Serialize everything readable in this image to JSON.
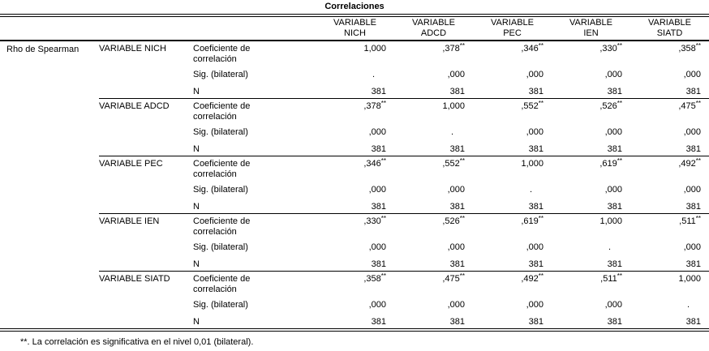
{
  "title": "Correlaciones",
  "corner_label": "Rho de Spearman",
  "columns": [
    {
      "line1": "VARIABLE",
      "line2": "NICH"
    },
    {
      "line1": "VARIABLE",
      "line2": "ADCD"
    },
    {
      "line1": "VARIABLE",
      "line2": "PEC"
    },
    {
      "line1": "VARIABLE",
      "line2": "IEN"
    },
    {
      "line1": "VARIABLE",
      "line2": "SIATD"
    }
  ],
  "labels": {
    "coef": "Coeficiente de correlación",
    "sig": "Sig. (bilateral)",
    "n": "N"
  },
  "blocks": [
    {
      "variable": "VARIABLE NICH",
      "coef": [
        "1,000",
        ",378",
        ",346",
        ",330",
        ",358"
      ],
      "coef_sup": [
        "",
        "**",
        "**",
        "**",
        "**"
      ],
      "sig": [
        ".",
        ",000",
        ",000",
        ",000",
        ",000"
      ],
      "n": [
        "381",
        "381",
        "381",
        "381",
        "381"
      ]
    },
    {
      "variable": "VARIABLE ADCD",
      "coef": [
        ",378",
        "1,000",
        ",552",
        ",526",
        ",475"
      ],
      "coef_sup": [
        "**",
        "",
        "**",
        "**",
        "**"
      ],
      "sig": [
        ",000",
        ".",
        ",000",
        ",000",
        ",000"
      ],
      "n": [
        "381",
        "381",
        "381",
        "381",
        "381"
      ]
    },
    {
      "variable": "VARIABLE PEC",
      "coef": [
        ",346",
        ",552",
        "1,000",
        ",619",
        ",492"
      ],
      "coef_sup": [
        "**",
        "**",
        "",
        "**",
        "**"
      ],
      "sig": [
        ",000",
        ",000",
        ".",
        ",000",
        ",000"
      ],
      "n": [
        "381",
        "381",
        "381",
        "381",
        "381"
      ]
    },
    {
      "variable": "VARIABLE IEN",
      "coef": [
        ",330",
        ",526",
        ",619",
        "1,000",
        ",511"
      ],
      "coef_sup": [
        "**",
        "**",
        "**",
        "",
        "**"
      ],
      "sig": [
        ",000",
        ",000",
        ",000",
        ".",
        ",000"
      ],
      "n": [
        "381",
        "381",
        "381",
        "381",
        "381"
      ]
    },
    {
      "variable": "VARIABLE SIATD",
      "coef": [
        ",358",
        ",475",
        ",492",
        ",511",
        "1,000"
      ],
      "coef_sup": [
        "**",
        "**",
        "**",
        "**",
        ""
      ],
      "sig": [
        ",000",
        ",000",
        ",000",
        ",000",
        "."
      ],
      "n": [
        "381",
        "381",
        "381",
        "381",
        "381"
      ]
    }
  ],
  "footnote": "**. La correlación es significativa en el nivel 0,01 (bilateral)."
}
